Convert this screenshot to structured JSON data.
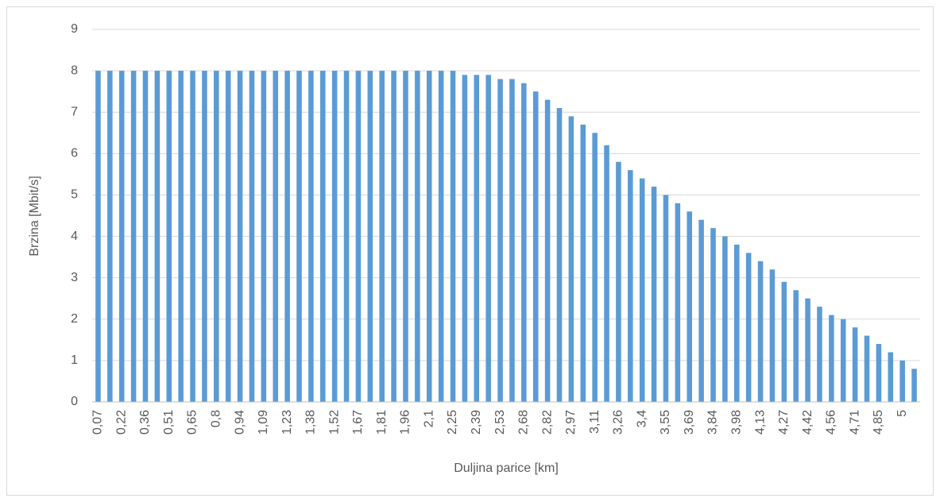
{
  "chart_data": {
    "type": "bar",
    "x_label": "Duljina parice [km]",
    "y_label": "Brzina [Mbit/s]",
    "categories": [
      "0,07",
      null,
      "0,22",
      null,
      "0,36",
      null,
      "0,51",
      null,
      "0,65",
      null,
      "0,8",
      null,
      "0,94",
      null,
      "1,09",
      null,
      "1,23",
      null,
      "1,38",
      null,
      "1,52",
      null,
      "1,67",
      null,
      "1,81",
      null,
      "1,96",
      null,
      "2,1",
      null,
      "2,25",
      null,
      "2,39",
      null,
      "2,53",
      null,
      "2,68",
      null,
      "2,82",
      null,
      "2,97",
      null,
      "3,11",
      null,
      "3,26",
      null,
      "3,4",
      null,
      "3,55",
      null,
      "3,69",
      null,
      "3,84",
      null,
      "3,98",
      null,
      "4,13",
      null,
      "4,27",
      null,
      "4,42",
      null,
      "4,56",
      null,
      "4,71",
      null,
      "4,85",
      null,
      "5",
      null
    ],
    "values": [
      8,
      8,
      8,
      8,
      8,
      8,
      8,
      8,
      8,
      8,
      8,
      8,
      8,
      8,
      8,
      8,
      8,
      8,
      8,
      8,
      8,
      8,
      8,
      8,
      8,
      8,
      8,
      8,
      8,
      8,
      8,
      7.9,
      7.9,
      7.9,
      7.8,
      7.8,
      7.7,
      7.5,
      7.3,
      7.1,
      6.9,
      6.7,
      6.5,
      6.2,
      5.8,
      5.6,
      5.4,
      5.2,
      5.0,
      4.8,
      4.6,
      4.4,
      4.2,
      4.0,
      3.8,
      3.6,
      3.4,
      3.2,
      2.9,
      2.7,
      2.5,
      2.3,
      2.1,
      2.0,
      1.8,
      1.6,
      1.4,
      1.2,
      1.0,
      0.8
    ],
    "color": "#5b9bd5",
    "ylim": [
      0,
      9
    ],
    "yticks": [
      0,
      1,
      2,
      3,
      4,
      5,
      6,
      7,
      8,
      9
    ],
    "grid": true
  }
}
